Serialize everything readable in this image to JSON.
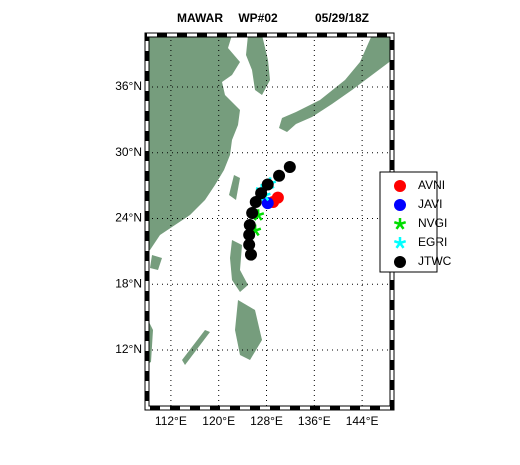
{
  "chart_data": {
    "type": "scatter",
    "title": "MAWAR",
    "storm_id": "WP#02",
    "date": "05/29/18Z",
    "xlim": [
      108,
      149
    ],
    "ylim": [
      6.7,
      40.75
    ],
    "xticks": [
      {
        "value": 112,
        "label": "112°E"
      },
      {
        "value": 120,
        "label": "120°E"
      },
      {
        "value": 128,
        "label": "128°E"
      },
      {
        "value": 136,
        "label": "136°E"
      },
      {
        "value": 144,
        "label": "144°E"
      }
    ],
    "yticks": [
      {
        "value": 12,
        "label": "12°N"
      },
      {
        "value": 18,
        "label": "18°N"
      },
      {
        "value": 24,
        "label": "24°N"
      },
      {
        "value": 30,
        "label": "30°N"
      },
      {
        "value": 36,
        "label": "36°N"
      }
    ],
    "grid": true,
    "series": [
      {
        "name": "AVNI",
        "color": "#ff0000",
        "marker": "circle",
        "x": [
          129.1,
          129.9
        ],
        "y": [
          25.5,
          25.9
        ]
      },
      {
        "name": "JAVI",
        "color": "#0000ff",
        "marker": "circle",
        "x": [
          128.2
        ],
        "y": [
          25.4
        ]
      },
      {
        "name": "NVGI",
        "color": "#00dd00",
        "marker": "star",
        "x": [
          126.1,
          126.6
        ],
        "y": [
          22.9,
          24.3
        ]
      },
      {
        "name": "EGRI",
        "color": "#00ffff",
        "marker": "star",
        "x": [
          127.7,
          127.2,
          128.6
        ],
        "y": [
          26.1,
          26.6,
          27.2
        ]
      },
      {
        "name": "JTWC",
        "color": "#000000",
        "marker": "circle",
        "x": [
          125.4,
          125.1,
          125.1,
          125.2,
          125.6,
          126.2,
          127.1,
          128.2,
          130.1,
          131.9
        ],
        "y": [
          20.7,
          21.6,
          22.5,
          23.4,
          24.5,
          25.5,
          26.3,
          27.1,
          27.9,
          28.7
        ]
      }
    ]
  }
}
